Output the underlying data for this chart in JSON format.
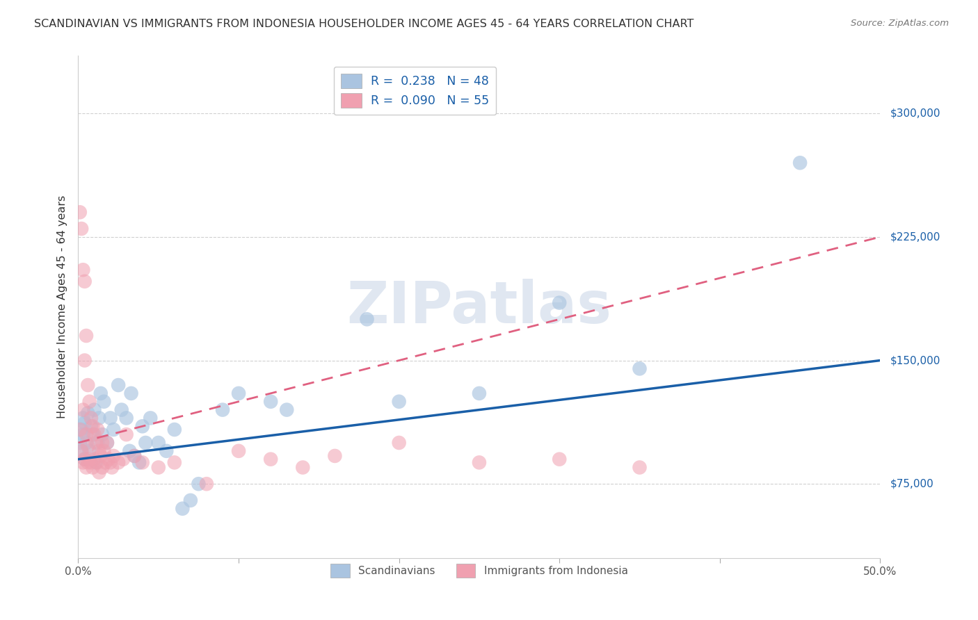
{
  "title": "SCANDINAVIAN VS IMMIGRANTS FROM INDONESIA HOUSEHOLDER INCOME AGES 45 - 64 YEARS CORRELATION CHART",
  "source": "Source: ZipAtlas.com",
  "ylabel": "Householder Income Ages 45 - 64 years",
  "yticks": [
    75000,
    150000,
    225000,
    300000
  ],
  "ytick_labels": [
    "$75,000",
    "$150,000",
    "$225,000",
    "$300,000"
  ],
  "xlim": [
    0.0,
    0.5
  ],
  "ylim": [
    30000,
    335000
  ],
  "blue_intercept": 90000,
  "blue_slope": 120000,
  "pink_intercept": 100000,
  "pink_slope": 250000,
  "scandinavians_x": [
    0.001,
    0.002,
    0.002,
    0.003,
    0.003,
    0.004,
    0.004,
    0.005,
    0.006,
    0.007,
    0.008,
    0.009,
    0.01,
    0.011,
    0.012,
    0.013,
    0.014,
    0.015,
    0.016,
    0.018,
    0.02,
    0.022,
    0.025,
    0.027,
    0.03,
    0.032,
    0.033,
    0.035,
    0.038,
    0.04,
    0.042,
    0.045,
    0.05,
    0.055,
    0.06,
    0.065,
    0.07,
    0.075,
    0.09,
    0.1,
    0.12,
    0.13,
    0.18,
    0.2,
    0.25,
    0.3,
    0.35,
    0.45
  ],
  "scandinavians_y": [
    100000,
    95000,
    108000,
    105000,
    115000,
    112000,
    90000,
    100000,
    118000,
    95000,
    110000,
    105000,
    120000,
    88000,
    100000,
    115000,
    130000,
    105000,
    125000,
    100000,
    115000,
    108000,
    135000,
    120000,
    115000,
    95000,
    130000,
    92000,
    88000,
    110000,
    100000,
    115000,
    100000,
    95000,
    108000,
    60000,
    65000,
    75000,
    120000,
    130000,
    125000,
    120000,
    175000,
    125000,
    130000,
    185000,
    145000,
    270000
  ],
  "indonesia_x": [
    0.001,
    0.001,
    0.002,
    0.002,
    0.003,
    0.003,
    0.003,
    0.004,
    0.004,
    0.004,
    0.005,
    0.005,
    0.005,
    0.006,
    0.006,
    0.006,
    0.007,
    0.007,
    0.008,
    0.008,
    0.009,
    0.009,
    0.01,
    0.01,
    0.011,
    0.012,
    0.012,
    0.013,
    0.013,
    0.014,
    0.015,
    0.015,
    0.016,
    0.017,
    0.018,
    0.019,
    0.02,
    0.021,
    0.022,
    0.025,
    0.028,
    0.03,
    0.035,
    0.04,
    0.05,
    0.06,
    0.08,
    0.1,
    0.12,
    0.14,
    0.16,
    0.2,
    0.25,
    0.3,
    0.35
  ],
  "indonesia_y": [
    240000,
    108000,
    230000,
    95000,
    205000,
    120000,
    88000,
    198000,
    150000,
    90000,
    165000,
    105000,
    85000,
    135000,
    98000,
    88000,
    125000,
    90000,
    115000,
    88000,
    110000,
    85000,
    105000,
    90000,
    100000,
    108000,
    88000,
    95000,
    82000,
    92000,
    100000,
    85000,
    95000,
    88000,
    100000,
    90000,
    88000,
    85000,
    92000,
    88000,
    90000,
    105000,
    92000,
    88000,
    85000,
    88000,
    75000,
    95000,
    90000,
    85000,
    92000,
    100000,
    88000,
    90000,
    85000
  ],
  "blue_color": "#aac4e0",
  "pink_color": "#f0a0b0",
  "blue_line_color": "#1a5fa8",
  "pink_line_color": "#e06080",
  "watermark_text": "ZIPatlas",
  "watermark_color": "#ccd8e8",
  "grid_color": "#d0d0d0",
  "background_color": "#ffffff",
  "legend1_blue": "R =  0.238   N = 48",
  "legend1_pink": "R =  0.090   N = 55",
  "legend2_blue": "Scandinavians",
  "legend2_pink": "Immigrants from Indonesia"
}
